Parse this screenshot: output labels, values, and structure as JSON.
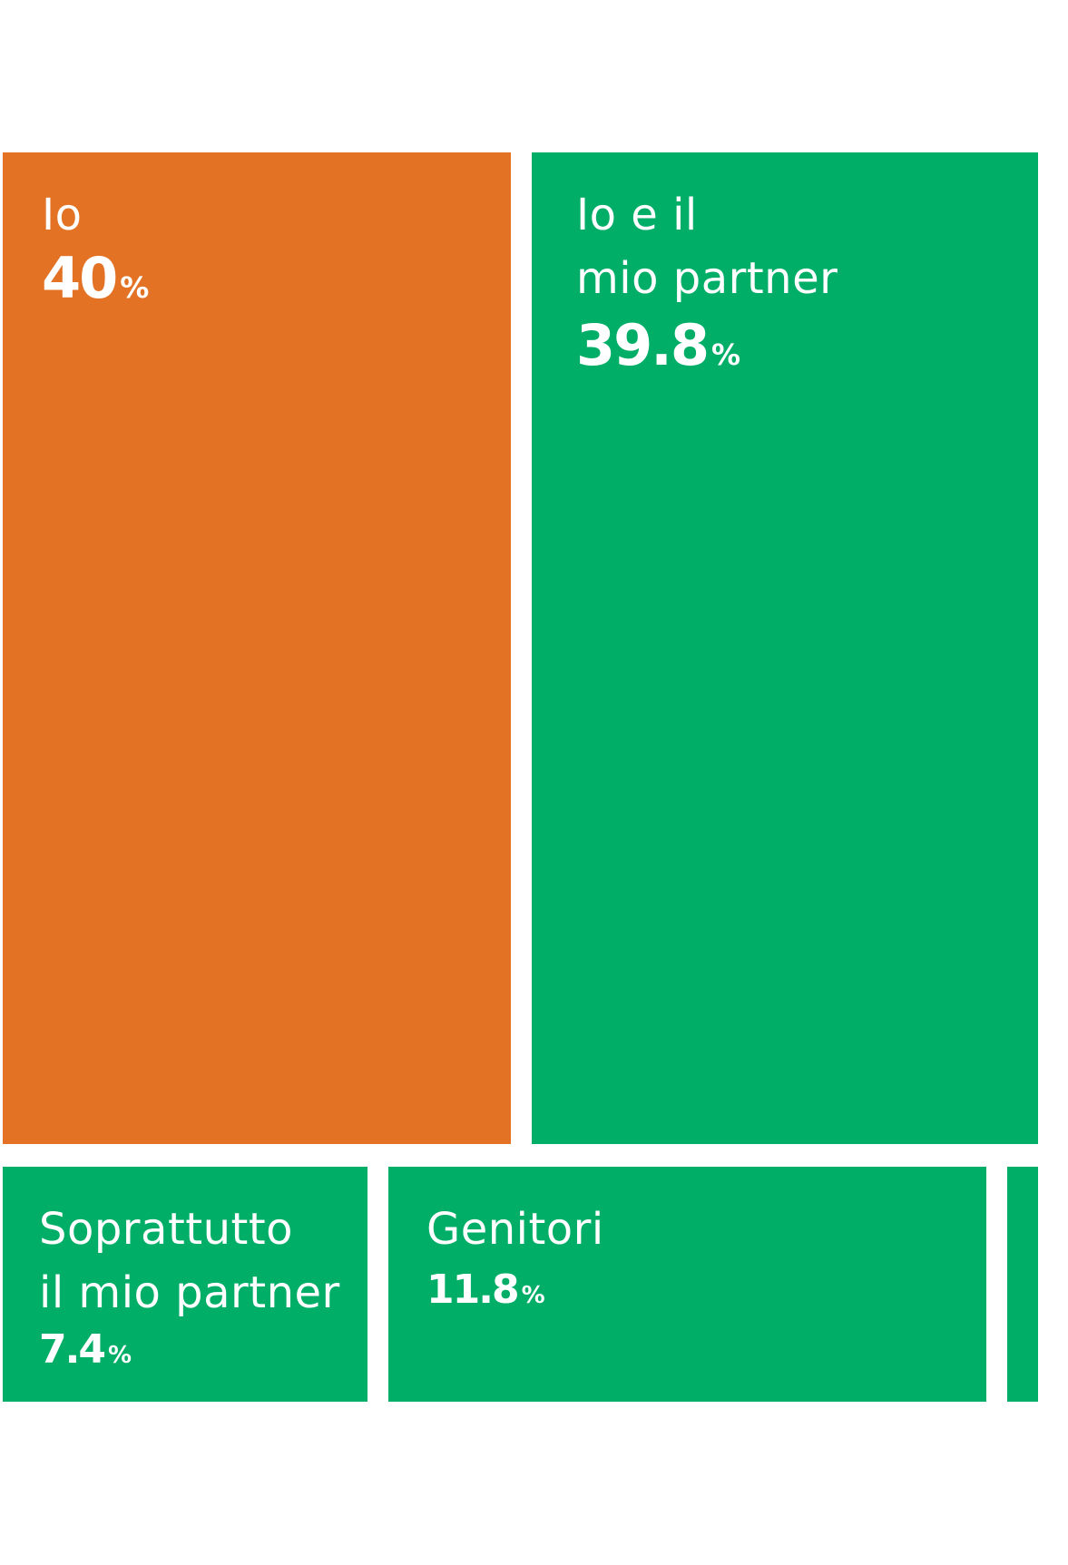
{
  "colors": {
    "orange": "#e37224",
    "green": "#00ae68",
    "background": "#ffffff"
  },
  "chart_data": {
    "type": "treemap",
    "unit": "%",
    "items": [
      {
        "label": "Io",
        "value": 40,
        "display": "40",
        "color": "orange"
      },
      {
        "label": "Io e il\nmio partner",
        "value": 39.8,
        "display": "39.8",
        "color": "green"
      },
      {
        "label": "Soprattutto\nil mio partner",
        "value": 7.4,
        "display": "7.4",
        "color": "green"
      },
      {
        "label": "Genitori",
        "value": 11.8,
        "display": "11.8",
        "color": "green"
      },
      {
        "label": "",
        "value": null,
        "display": "",
        "color": "green"
      }
    ]
  }
}
